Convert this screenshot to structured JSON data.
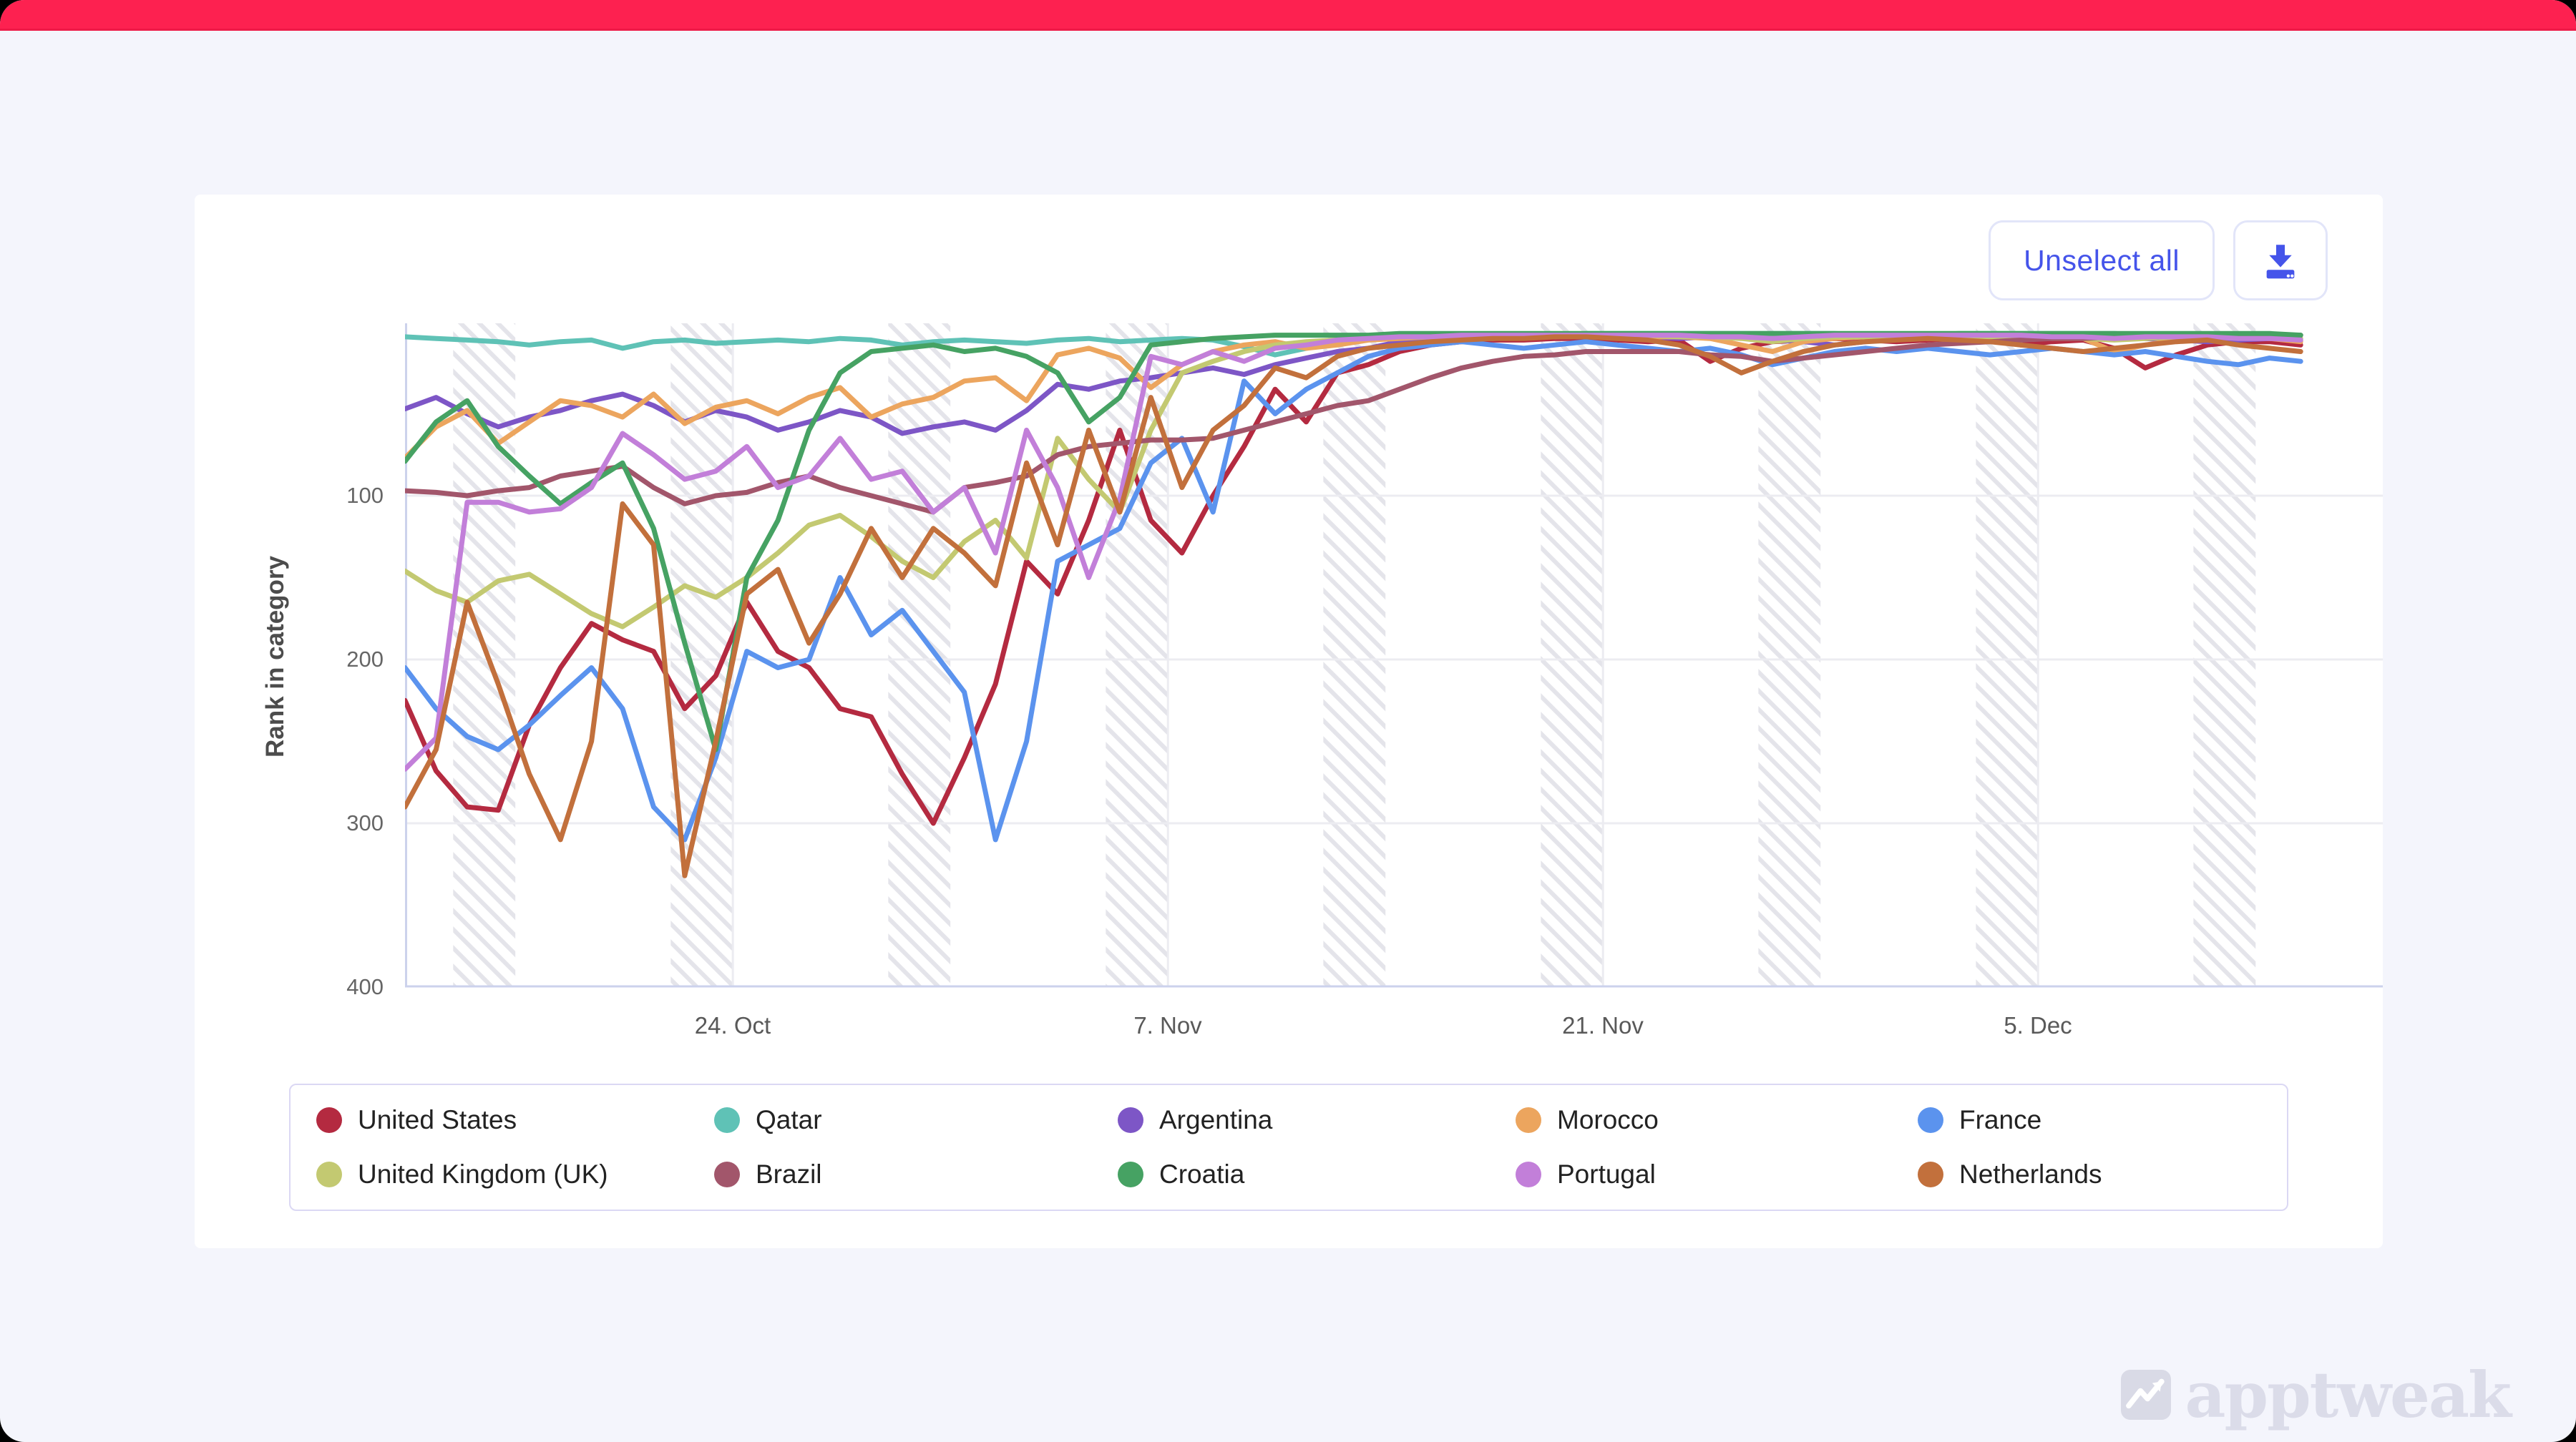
{
  "page": {
    "background": "#f4f5fc",
    "topbar_color": "#fd2150",
    "card_background": "#ffffff",
    "accent": "#4554ea"
  },
  "toolbar": {
    "unselect_label": "Unselect all",
    "download_icon": "download-icon"
  },
  "watermark": {
    "text": "apptweak",
    "logo_icon": "apptweak-logo-chart-line",
    "color": "#dbdce9"
  },
  "chart_data": {
    "type": "line",
    "title": "",
    "xlabel": "",
    "ylabel": "Rank in category",
    "y_axis_reversed": true,
    "ylim": [
      1,
      400
    ],
    "yticks": [
      "100",
      "200",
      "300",
      "400"
    ],
    "xticks": [
      "24. Oct",
      "7. Nov",
      "21. Nov",
      "5. Dec"
    ],
    "x_start_date": "2022-10-13",
    "x_end_date": "2022-12-13",
    "x_step_days": 1,
    "n_points": 62,
    "grid": true,
    "weekend_bands": "hatched vertical bands Sat-Mon each week",
    "legend_position": "bottom",
    "series": [
      {
        "name": "United States",
        "color": "#b42a40",
        "values": [
          225,
          268,
          290,
          292,
          240,
          205,
          178,
          188,
          195,
          230,
          210,
          165,
          195,
          205,
          230,
          235,
          270,
          300,
          260,
          215,
          140,
          160,
          115,
          60,
          115,
          135,
          100,
          70,
          35,
          55,
          25,
          20,
          12,
          8,
          6,
          5,
          5,
          4,
          4,
          5,
          6,
          5,
          18,
          10,
          6,
          5,
          4,
          5,
          6,
          5,
          4,
          5,
          8,
          6,
          5,
          10,
          22,
          14,
          8,
          6,
          6,
          8
        ]
      },
      {
        "name": "Qatar",
        "color": "#5fc2b6",
        "values": [
          3,
          4,
          5,
          6,
          8,
          6,
          5,
          10,
          6,
          5,
          7,
          6,
          5,
          6,
          4,
          5,
          8,
          6,
          5,
          6,
          7,
          5,
          4,
          6,
          5,
          4,
          5,
          9,
          14,
          10,
          6,
          4,
          3,
          2,
          2,
          2,
          2,
          2,
          1,
          1,
          1,
          1,
          1,
          1,
          1,
          1,
          1,
          2,
          2,
          2,
          1,
          1,
          1,
          1,
          1,
          1,
          2,
          2,
          2,
          2,
          2,
          2
        ]
      },
      {
        "name": "Argentina",
        "color": "#7d56c6",
        "values": [
          47,
          40,
          50,
          58,
          52,
          48,
          42,
          38,
          45,
          55,
          48,
          52,
          60,
          55,
          48,
          52,
          62,
          58,
          55,
          60,
          48,
          32,
          35,
          30,
          28,
          25,
          22,
          26,
          20,
          16,
          12,
          10,
          6,
          5,
          4,
          4,
          3,
          3,
          3,
          3,
          3,
          4,
          3,
          3,
          5,
          6,
          8,
          6,
          4,
          3,
          3,
          3,
          3,
          4,
          3,
          3,
          4,
          5,
          6,
          5,
          4,
          5
        ]
      },
      {
        "name": "Morocco",
        "color": "#eca55e",
        "values": [
          77,
          58,
          48,
          68,
          55,
          42,
          45,
          52,
          38,
          56,
          46,
          42,
          50,
          40,
          34,
          52,
          44,
          40,
          30,
          28,
          42,
          14,
          10,
          16,
          34,
          20,
          12,
          8,
          6,
          10,
          8,
          5,
          4,
          3,
          3,
          4,
          3,
          3,
          2,
          2,
          3,
          3,
          4,
          8,
          12,
          6,
          4,
          3,
          3,
          4,
          3,
          3,
          3,
          4,
          4,
          12,
          8,
          5,
          4,
          3,
          4,
          6
        ]
      },
      {
        "name": "France",
        "color": "#5b93ee",
        "values": [
          205,
          230,
          247,
          255,
          240,
          222,
          205,
          230,
          290,
          310,
          260,
          195,
          205,
          200,
          150,
          185,
          170,
          195,
          220,
          310,
          250,
          140,
          130,
          120,
          80,
          65,
          110,
          30,
          50,
          35,
          25,
          15,
          10,
          8,
          6,
          8,
          10,
          8,
          6,
          8,
          10,
          12,
          10,
          14,
          20,
          16,
          12,
          10,
          12,
          10,
          12,
          14,
          12,
          10,
          12,
          14,
          12,
          15,
          18,
          20,
          16,
          18
        ]
      },
      {
        "name": "United Kingdom (UK)",
        "color": "#c3c971",
        "values": [
          146,
          158,
          165,
          152,
          148,
          160,
          172,
          180,
          168,
          155,
          162,
          150,
          135,
          118,
          112,
          125,
          140,
          150,
          128,
          115,
          138,
          65,
          90,
          110,
          60,
          25,
          18,
          12,
          8,
          6,
          5,
          4,
          3,
          3,
          3,
          2,
          2,
          2,
          2,
          2,
          2,
          3,
          3,
          4,
          6,
          4,
          3,
          3,
          2,
          3,
          3,
          3,
          3,
          3,
          4,
          5,
          4,
          3,
          3,
          3,
          3,
          4
        ]
      },
      {
        "name": "Brazil",
        "color": "#a2566b",
        "values": [
          97,
          98,
          100,
          97,
          95,
          88,
          85,
          82,
          95,
          105,
          100,
          98,
          92,
          88,
          95,
          100,
          105,
          110,
          95,
          92,
          88,
          75,
          70,
          68,
          66,
          66,
          65,
          60,
          55,
          50,
          45,
          42,
          35,
          28,
          22,
          18,
          15,
          14,
          12,
          12,
          12,
          12,
          14,
          15,
          18,
          16,
          14,
          12,
          10,
          8,
          7,
          6,
          5,
          4,
          4,
          3,
          3,
          2,
          2,
          2,
          2,
          2
        ]
      },
      {
        "name": "Croatia",
        "color": "#46a263",
        "values": [
          79,
          55,
          42,
          70,
          88,
          105,
          92,
          80,
          120,
          190,
          255,
          150,
          115,
          60,
          25,
          12,
          10,
          8,
          12,
          10,
          15,
          25,
          55,
          40,
          8,
          6,
          4,
          3,
          2,
          2,
          2,
          2,
          1,
          1,
          1,
          1,
          1,
          1,
          1,
          1,
          1,
          1,
          1,
          1,
          1,
          1,
          1,
          1,
          1,
          1,
          1,
          1,
          1,
          1,
          1,
          1,
          1,
          1,
          1,
          1,
          1,
          2
        ]
      },
      {
        "name": "Portugal",
        "color": "#c27fd9",
        "values": [
          267,
          248,
          104,
          104,
          110,
          108,
          95,
          62,
          75,
          90,
          85,
          70,
          95,
          88,
          65,
          90,
          85,
          110,
          95,
          135,
          60,
          95,
          150,
          102,
          15,
          20,
          12,
          18,
          10,
          8,
          5,
          4,
          3,
          3,
          2,
          2,
          2,
          2,
          2,
          2,
          2,
          2,
          3,
          3,
          4,
          3,
          2,
          2,
          2,
          2,
          2,
          2,
          2,
          3,
          3,
          4,
          3,
          3,
          3,
          4,
          4,
          5
        ]
      },
      {
        "name": "Netherlands",
        "color": "#c2703c",
        "values": [
          290,
          255,
          165,
          215,
          270,
          310,
          250,
          105,
          130,
          332,
          250,
          160,
          145,
          190,
          160,
          120,
          150,
          120,
          135,
          155,
          80,
          130,
          60,
          110,
          40,
          95,
          60,
          45,
          22,
          28,
          15,
          10,
          8,
          6,
          5,
          4,
          4,
          3,
          3,
          4,
          5,
          8,
          15,
          25,
          18,
          12,
          8,
          6,
          5,
          4,
          5,
          6,
          8,
          10,
          12,
          10,
          8,
          6,
          5,
          8,
          10,
          12
        ]
      }
    ]
  },
  "legend": {
    "items": [
      {
        "label": "United States",
        "color": "#b42a40"
      },
      {
        "label": "Qatar",
        "color": "#5fc2b6"
      },
      {
        "label": "Argentina",
        "color": "#7d56c6"
      },
      {
        "label": "Morocco",
        "color": "#eca55e"
      },
      {
        "label": "France",
        "color": "#5b93ee"
      },
      {
        "label": "United Kingdom (UK)",
        "color": "#c3c971"
      },
      {
        "label": "Brazil",
        "color": "#a2566b"
      },
      {
        "label": "Croatia",
        "color": "#46a263"
      },
      {
        "label": "Portugal",
        "color": "#c27fd9"
      },
      {
        "label": "Netherlands",
        "color": "#c2703c"
      }
    ]
  }
}
